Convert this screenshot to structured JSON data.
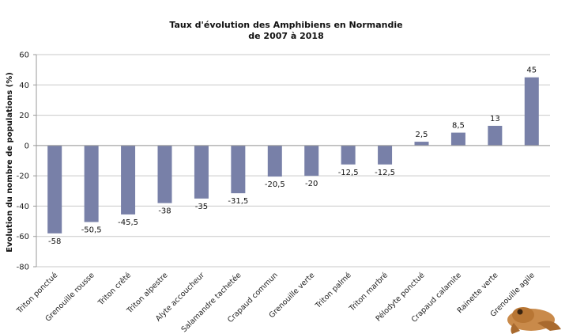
{
  "chart_data": {
    "type": "bar",
    "title": [
      "Taux d'évolution des Amphibiens  en Normandie",
      "de 2007 à 2018"
    ],
    "ylabel": "Evolution du nombre de populations (%)",
    "xlabel": "",
    "ylim": [
      -80,
      60
    ],
    "yticks": [
      60,
      40,
      20,
      0,
      -20,
      -40,
      -60,
      -80
    ],
    "grid": true,
    "legend": "none",
    "bar_color": "#7880a8",
    "categories": [
      "Triton ponctué",
      "Grenouille rousse",
      "Triton crêté",
      "Triton alpestre",
      "Alyte accoucheur",
      "Salamandre tachetée",
      "Crapaud commun",
      "Grenouille verte",
      "Triton palmé",
      "Triton marbré",
      "Pélodyte ponctué",
      "Crapaud calamite",
      "Rainette verte",
      "Grenouille agile"
    ],
    "values": [
      -58,
      -50.5,
      -45.5,
      -38,
      -35,
      -31.5,
      -20.5,
      -20,
      -12.5,
      -12.5,
      2.5,
      8.5,
      13,
      45
    ],
    "value_labels": [
      "-58",
      "-50,5",
      "-45,5",
      "-38",
      "-35",
      "-31,5",
      "-20,5",
      "-20",
      "-12,5",
      "-12,5",
      "2,5",
      "8,5",
      "13",
      "45"
    ]
  }
}
